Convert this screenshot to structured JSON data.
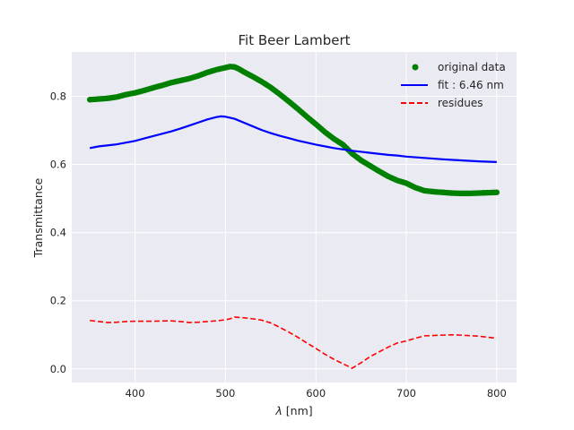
{
  "chart_data": {
    "type": "line",
    "title": "Fit Beer Lambert",
    "xlabel_symbol": "λ",
    "xlabel_unit": "[nm]",
    "ylabel": "Transmittance",
    "xlim": [
      330,
      822
    ],
    "ylim": [
      -0.04,
      0.93
    ],
    "x_ticks": [
      400,
      500,
      600,
      700,
      800
    ],
    "x_tick_labels": [
      "400",
      "500",
      "600",
      "700",
      "800"
    ],
    "y_ticks": [
      0.0,
      0.2,
      0.4,
      0.6,
      0.8
    ],
    "y_tick_labels": [
      "0.0",
      "0.2",
      "0.4",
      "0.6",
      "0.8"
    ],
    "grid": true,
    "legend_position": "top-right",
    "background": "#eaeaf2",
    "series": [
      {
        "name": "original data",
        "style": "dots",
        "color": "#008000",
        "points": [
          [
            350,
            0.79
          ],
          [
            360,
            0.792
          ],
          [
            370,
            0.794
          ],
          [
            380,
            0.798
          ],
          [
            390,
            0.805
          ],
          [
            400,
            0.81
          ],
          [
            410,
            0.817
          ],
          [
            420,
            0.825
          ],
          [
            430,
            0.832
          ],
          [
            440,
            0.84
          ],
          [
            450,
            0.846
          ],
          [
            460,
            0.852
          ],
          [
            470,
            0.86
          ],
          [
            480,
            0.87
          ],
          [
            490,
            0.878
          ],
          [
            500,
            0.884
          ],
          [
            505,
            0.887
          ],
          [
            510,
            0.886
          ],
          [
            515,
            0.88
          ],
          [
            520,
            0.872
          ],
          [
            530,
            0.858
          ],
          [
            540,
            0.843
          ],
          [
            550,
            0.826
          ],
          [
            560,
            0.806
          ],
          [
            570,
            0.785
          ],
          [
            580,
            0.763
          ],
          [
            590,
            0.74
          ],
          [
            600,
            0.718
          ],
          [
            610,
            0.695
          ],
          [
            620,
            0.675
          ],
          [
            630,
            0.658
          ],
          [
            640,
            0.632
          ],
          [
            650,
            0.612
          ],
          [
            660,
            0.596
          ],
          [
            670,
            0.58
          ],
          [
            680,
            0.565
          ],
          [
            690,
            0.553
          ],
          [
            700,
            0.545
          ],
          [
            710,
            0.532
          ],
          [
            720,
            0.523
          ],
          [
            730,
            0.52
          ],
          [
            740,
            0.518
          ],
          [
            750,
            0.516
          ],
          [
            760,
            0.515
          ],
          [
            770,
            0.515
          ],
          [
            780,
            0.516
          ],
          [
            790,
            0.517
          ],
          [
            800,
            0.518
          ]
        ]
      },
      {
        "name": "fit : 6.46 nm",
        "style": "solid",
        "color": "#0000ff",
        "points": [
          [
            350,
            0.648
          ],
          [
            360,
            0.653
          ],
          [
            370,
            0.656
          ],
          [
            380,
            0.659
          ],
          [
            390,
            0.664
          ],
          [
            400,
            0.669
          ],
          [
            410,
            0.676
          ],
          [
            420,
            0.683
          ],
          [
            430,
            0.69
          ],
          [
            440,
            0.697
          ],
          [
            450,
            0.705
          ],
          [
            460,
            0.714
          ],
          [
            470,
            0.723
          ],
          [
            480,
            0.732
          ],
          [
            490,
            0.739
          ],
          [
            495,
            0.741
          ],
          [
            500,
            0.74
          ],
          [
            510,
            0.734
          ],
          [
            520,
            0.723
          ],
          [
            530,
            0.712
          ],
          [
            540,
            0.701
          ],
          [
            550,
            0.692
          ],
          [
            560,
            0.684
          ],
          [
            570,
            0.677
          ],
          [
            580,
            0.67
          ],
          [
            590,
            0.664
          ],
          [
            600,
            0.658
          ],
          [
            610,
            0.653
          ],
          [
            620,
            0.648
          ],
          [
            630,
            0.644
          ],
          [
            640,
            0.64
          ],
          [
            650,
            0.637
          ],
          [
            660,
            0.634
          ],
          [
            670,
            0.631
          ],
          [
            680,
            0.628
          ],
          [
            690,
            0.626
          ],
          [
            700,
            0.623
          ],
          [
            720,
            0.619
          ],
          [
            740,
            0.615
          ],
          [
            760,
            0.612
          ],
          [
            780,
            0.609
          ],
          [
            800,
            0.607
          ]
        ]
      },
      {
        "name": "residues",
        "style": "dashed",
        "color": "#ff0000",
        "points": [
          [
            350,
            0.142
          ],
          [
            360,
            0.139
          ],
          [
            370,
            0.136
          ],
          [
            380,
            0.137
          ],
          [
            390,
            0.139
          ],
          [
            400,
            0.14
          ],
          [
            420,
            0.14
          ],
          [
            440,
            0.141
          ],
          [
            450,
            0.139
          ],
          [
            460,
            0.136
          ],
          [
            470,
            0.137
          ],
          [
            480,
            0.139
          ],
          [
            490,
            0.141
          ],
          [
            500,
            0.144
          ],
          [
            505,
            0.147
          ],
          [
            510,
            0.152
          ],
          [
            520,
            0.15
          ],
          [
            530,
            0.147
          ],
          [
            540,
            0.143
          ],
          [
            550,
            0.135
          ],
          [
            560,
            0.122
          ],
          [
            570,
            0.108
          ],
          [
            580,
            0.093
          ],
          [
            590,
            0.076
          ],
          [
            600,
            0.06
          ],
          [
            610,
            0.043
          ],
          [
            620,
            0.028
          ],
          [
            630,
            0.015
          ],
          [
            640,
            0.002
          ],
          [
            650,
            0.018
          ],
          [
            660,
            0.036
          ],
          [
            670,
            0.05
          ],
          [
            680,
            0.064
          ],
          [
            690,
            0.076
          ],
          [
            700,
            0.082
          ],
          [
            710,
            0.09
          ],
          [
            720,
            0.097
          ],
          [
            740,
            0.099
          ],
          [
            750,
            0.1
          ],
          [
            760,
            0.099
          ],
          [
            780,
            0.096
          ],
          [
            800,
            0.09
          ]
        ]
      }
    ]
  }
}
